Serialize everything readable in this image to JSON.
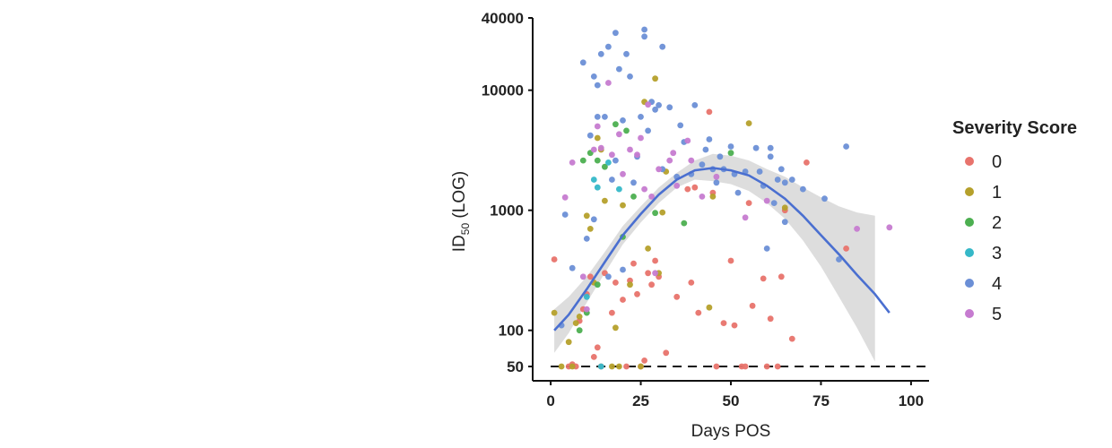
{
  "chart_data": {
    "type": "scatter",
    "title": "",
    "xlabel": "Days POS",
    "ylabel": "ID50 (LOG)",
    "ylabel_parts": {
      "main": "ID",
      "sub": "50",
      "suffix": " (LOG)"
    },
    "xlim": [
      -5,
      105
    ],
    "ylim": [
      38,
      40000
    ],
    "y_scale": "log",
    "x_ticks": [
      0,
      25,
      50,
      75,
      100
    ],
    "y_ticks": [
      50,
      100,
      1000,
      10000,
      40000
    ],
    "grid": false,
    "legend": {
      "title": "Severity Score",
      "placement": "right"
    },
    "reference_line": {
      "y": 50,
      "style": "dashed",
      "x_range": [
        0,
        104
      ]
    },
    "series": [
      {
        "name": "0",
        "color": "#e8736c",
        "points": [
          [
            1,
            390
          ],
          [
            5,
            50
          ],
          [
            6,
            52
          ],
          [
            7,
            50
          ],
          [
            8,
            120
          ],
          [
            9,
            150
          ],
          [
            10,
            200
          ],
          [
            11,
            280
          ],
          [
            12,
            60
          ],
          [
            13,
            72
          ],
          [
            14,
            50
          ],
          [
            15,
            300
          ],
          [
            17,
            140
          ],
          [
            18,
            250
          ],
          [
            20,
            180
          ],
          [
            21,
            50
          ],
          [
            22,
            260
          ],
          [
            23,
            360
          ],
          [
            24,
            200
          ],
          [
            25,
            50
          ],
          [
            26,
            56
          ],
          [
            27,
            300
          ],
          [
            28,
            240
          ],
          [
            29,
            380
          ],
          [
            30,
            280
          ],
          [
            32,
            65
          ],
          [
            35,
            190
          ],
          [
            38,
            1500
          ],
          [
            39,
            250
          ],
          [
            40,
            1550
          ],
          [
            41,
            140
          ],
          [
            44,
            6600
          ],
          [
            45,
            1400
          ],
          [
            46,
            50
          ],
          [
            48,
            115
          ],
          [
            50,
            380
          ],
          [
            51,
            110
          ],
          [
            53,
            50
          ],
          [
            54,
            50
          ],
          [
            55,
            1150
          ],
          [
            56,
            160
          ],
          [
            59,
            270
          ],
          [
            60,
            50
          ],
          [
            61,
            125
          ],
          [
            63,
            50
          ],
          [
            64,
            280
          ],
          [
            65,
            1000
          ],
          [
            67,
            85
          ],
          [
            71,
            2500
          ],
          [
            82,
            480
          ]
        ]
      },
      {
        "name": "1",
        "color": "#b5a02b",
        "points": [
          [
            1,
            140
          ],
          [
            3,
            50
          ],
          [
            5,
            80
          ],
          [
            6,
            50
          ],
          [
            7,
            115
          ],
          [
            8,
            130
          ],
          [
            10,
            900
          ],
          [
            11,
            700
          ],
          [
            12,
            250
          ],
          [
            13,
            4000
          ],
          [
            14,
            3200
          ],
          [
            15,
            1200
          ],
          [
            17,
            50
          ],
          [
            18,
            105
          ],
          [
            19,
            50
          ],
          [
            20,
            1100
          ],
          [
            22,
            240
          ],
          [
            25,
            50
          ],
          [
            26,
            8000
          ],
          [
            27,
            480
          ],
          [
            29,
            12500
          ],
          [
            30,
            300
          ],
          [
            31,
            960
          ],
          [
            32,
            2100
          ],
          [
            44,
            155
          ],
          [
            45,
            1300
          ],
          [
            55,
            5300
          ],
          [
            65,
            1050
          ]
        ]
      },
      {
        "name": "2",
        "color": "#4caf50",
        "points": [
          [
            8,
            100
          ],
          [
            9,
            2600
          ],
          [
            10,
            140
          ],
          [
            11,
            3000
          ],
          [
            13,
            240
          ],
          [
            13,
            2600
          ],
          [
            15,
            2300
          ],
          [
            18,
            5200
          ],
          [
            20,
            600
          ],
          [
            21,
            4600
          ],
          [
            23,
            1300
          ],
          [
            29,
            950
          ],
          [
            37,
            780
          ],
          [
            50,
            3000
          ]
        ]
      },
      {
        "name": "3",
        "color": "#35b8c8",
        "points": [
          [
            10,
            190
          ],
          [
            12,
            1800
          ],
          [
            13,
            1550
          ],
          [
            14,
            50
          ],
          [
            16,
            2500
          ],
          [
            19,
            1500
          ]
        ]
      },
      {
        "name": "4",
        "color": "#6b8fd6",
        "points": [
          [
            3,
            110
          ],
          [
            4,
            920
          ],
          [
            6,
            330
          ],
          [
            9,
            17000
          ],
          [
            10,
            580
          ],
          [
            11,
            4200
          ],
          [
            12,
            13000
          ],
          [
            13,
            6000
          ],
          [
            13,
            11000
          ],
          [
            14,
            20000
          ],
          [
            15,
            6000
          ],
          [
            16,
            23000
          ],
          [
            17,
            1800
          ],
          [
            18,
            30000
          ],
          [
            18,
            2600
          ],
          [
            19,
            15000
          ],
          [
            20,
            5600
          ],
          [
            21,
            20000
          ],
          [
            22,
            13000
          ],
          [
            23,
            1700
          ],
          [
            24,
            2800
          ],
          [
            25,
            6000
          ],
          [
            26,
            32000
          ],
          [
            26,
            28000
          ],
          [
            27,
            4600
          ],
          [
            28,
            8000
          ],
          [
            29,
            6900
          ],
          [
            30,
            7500
          ],
          [
            31,
            23000
          ],
          [
            31,
            2200
          ],
          [
            33,
            7200
          ],
          [
            35,
            1900
          ],
          [
            36,
            5100
          ],
          [
            37,
            3700
          ],
          [
            39,
            2000
          ],
          [
            40,
            7500
          ],
          [
            42,
            2400
          ],
          [
            43,
            3200
          ],
          [
            44,
            3900
          ],
          [
            45,
            2200
          ],
          [
            46,
            1700
          ],
          [
            47,
            2800
          ],
          [
            48,
            2200
          ],
          [
            50,
            3400
          ],
          [
            51,
            2000
          ],
          [
            52,
            1400
          ],
          [
            54,
            2100
          ],
          [
            57,
            3300
          ],
          [
            58,
            2100
          ],
          [
            59,
            1600
          ],
          [
            60,
            480
          ],
          [
            61,
            3300
          ],
          [
            63,
            1800
          ],
          [
            64,
            2200
          ],
          [
            65,
            1700
          ],
          [
            67,
            1800
          ],
          [
            70,
            1500
          ],
          [
            76,
            1250
          ],
          [
            80,
            390
          ],
          [
            82,
            3400
          ],
          [
            61,
            2800
          ],
          [
            65,
            800
          ],
          [
            62,
            1150
          ],
          [
            16,
            280
          ],
          [
            20,
            320
          ],
          [
            12,
            840
          ]
        ]
      },
      {
        "name": "5",
        "color": "#c67bd0",
        "points": [
          [
            4,
            1280
          ],
          [
            6,
            2500
          ],
          [
            9,
            280
          ],
          [
            10,
            150
          ],
          [
            12,
            3200
          ],
          [
            13,
            5000
          ],
          [
            14,
            3300
          ],
          [
            16,
            11500
          ],
          [
            17,
            2900
          ],
          [
            19,
            4300
          ],
          [
            20,
            2000
          ],
          [
            22,
            3200
          ],
          [
            24,
            2900
          ],
          [
            25,
            4000
          ],
          [
            26,
            1500
          ],
          [
            27,
            7600
          ],
          [
            28,
            1300
          ],
          [
            29,
            300
          ],
          [
            30,
            2200
          ],
          [
            33,
            2600
          ],
          [
            34,
            3000
          ],
          [
            35,
            1600
          ],
          [
            38,
            3800
          ],
          [
            39,
            2600
          ],
          [
            42,
            1300
          ],
          [
            46,
            1900
          ],
          [
            54,
            870
          ],
          [
            60,
            1200
          ],
          [
            85,
            700
          ],
          [
            94,
            720
          ]
        ]
      }
    ],
    "trend": {
      "name": "fit",
      "color": "#4a6fd0",
      "x": [
        1,
        5,
        10,
        15,
        20,
        25,
        30,
        35,
        40,
        45,
        50,
        55,
        60,
        65,
        70,
        75,
        80,
        85,
        90,
        94
      ],
      "y": [
        100,
        135,
        220,
        370,
        620,
        930,
        1350,
        1800,
        2150,
        2250,
        2150,
        1950,
        1600,
        1250,
        900,
        620,
        430,
        290,
        200,
        140
      ]
    },
    "confidence_band": {
      "color": "#d9d9d9",
      "x": [
        1,
        5,
        10,
        15,
        20,
        25,
        30,
        35,
        40,
        45,
        50,
        55,
        60,
        65,
        70,
        75,
        80,
        85,
        90
      ],
      "upper": [
        150,
        190,
        280,
        450,
        740,
        1080,
        1550,
        2050,
        2600,
        2950,
        2850,
        2600,
        2200,
        1900,
        1550,
        1280,
        1080,
        960,
        900
      ],
      "lower": [
        65,
        95,
        170,
        300,
        520,
        790,
        1150,
        1550,
        1800,
        1750,
        1650,
        1450,
        1150,
        850,
        560,
        340,
        190,
        105,
        55
      ]
    }
  }
}
